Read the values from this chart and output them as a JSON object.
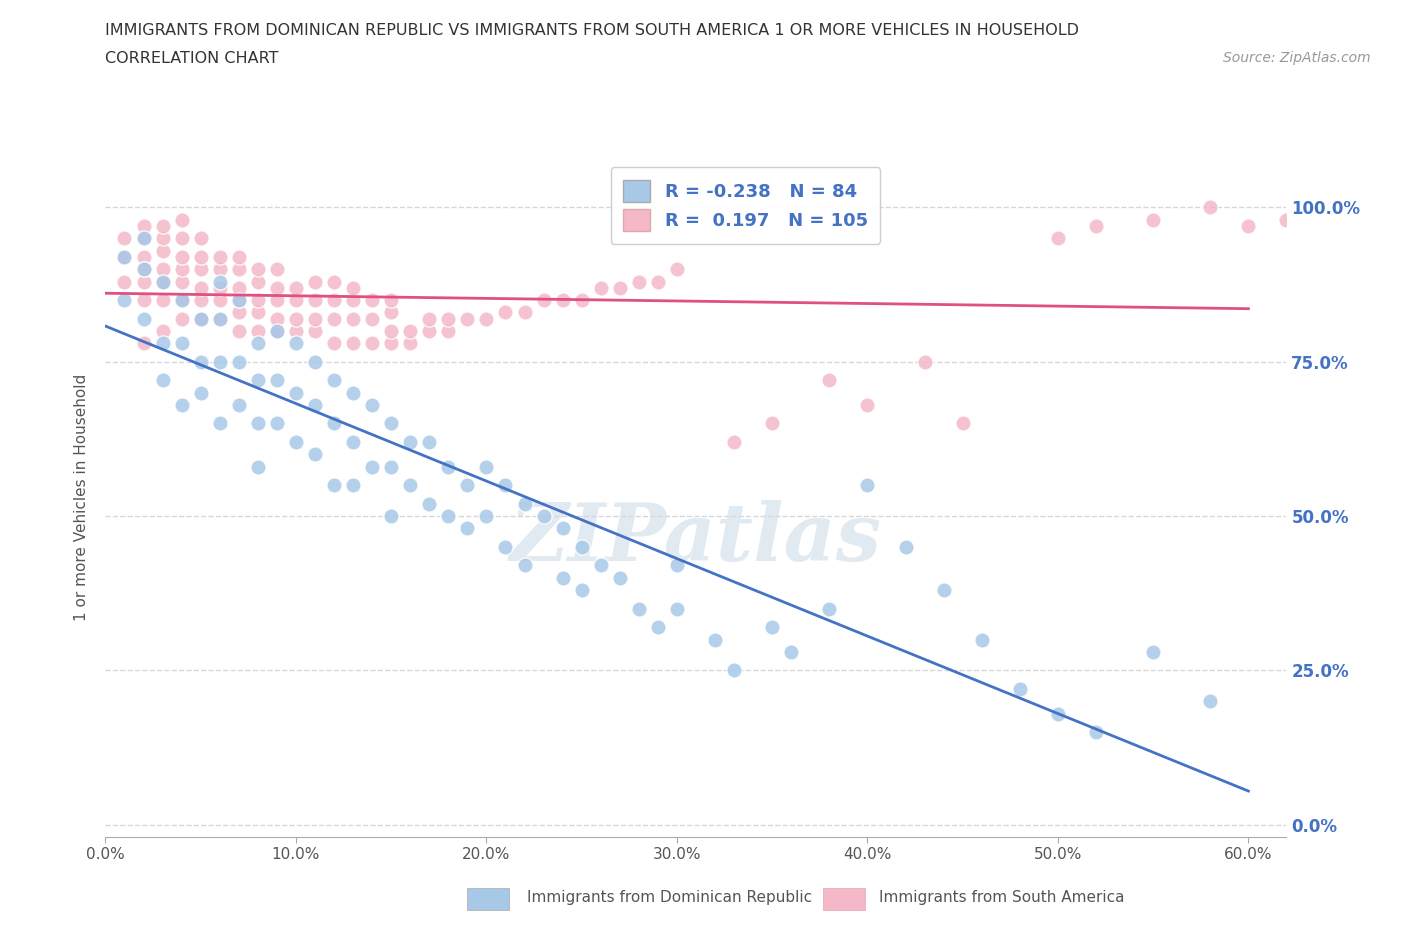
{
  "title_line1": "IMMIGRANTS FROM DOMINICAN REPUBLIC VS IMMIGRANTS FROM SOUTH AMERICA 1 OR MORE VEHICLES IN HOUSEHOLD",
  "title_line2": "CORRELATION CHART",
  "source_text": "Source: ZipAtlas.com",
  "ylabel": "1 or more Vehicles in Household",
  "xlim": [
    0.0,
    0.62
  ],
  "ylim": [
    -0.02,
    1.08
  ],
  "xtick_labels": [
    "0.0%",
    "10.0%",
    "20.0%",
    "30.0%",
    "40.0%",
    "50.0%",
    "60.0%"
  ],
  "xtick_vals": [
    0.0,
    0.1,
    0.2,
    0.3,
    0.4,
    0.5,
    0.6
  ],
  "ytick_labels": [
    "0.0%",
    "25.0%",
    "50.0%",
    "75.0%",
    "100.0%"
  ],
  "ytick_vals": [
    0.0,
    0.25,
    0.5,
    0.75,
    1.0
  ],
  "grid_color": "#cccccc",
  "grid_style": "--",
  "blue_color": "#a8c8e8",
  "pink_color": "#f4b8c8",
  "blue_line_color": "#4472C4",
  "pink_line_color": "#e05080",
  "R_blue": -0.238,
  "N_blue": 84,
  "R_pink": 0.197,
  "N_pink": 105,
  "legend_label_blue": "Immigrants from Dominican Republic",
  "legend_label_pink": "Immigrants from South America",
  "watermark": "ZIPatlas",
  "blue_scatter_x": [
    0.01,
    0.01,
    0.02,
    0.02,
    0.02,
    0.03,
    0.03,
    0.03,
    0.04,
    0.04,
    0.04,
    0.05,
    0.05,
    0.05,
    0.06,
    0.06,
    0.06,
    0.06,
    0.07,
    0.07,
    0.07,
    0.08,
    0.08,
    0.08,
    0.08,
    0.09,
    0.09,
    0.09,
    0.1,
    0.1,
    0.1,
    0.11,
    0.11,
    0.11,
    0.12,
    0.12,
    0.12,
    0.13,
    0.13,
    0.13,
    0.14,
    0.14,
    0.15,
    0.15,
    0.15,
    0.16,
    0.16,
    0.17,
    0.17,
    0.18,
    0.18,
    0.19,
    0.19,
    0.2,
    0.2,
    0.21,
    0.21,
    0.22,
    0.22,
    0.23,
    0.24,
    0.24,
    0.25,
    0.25,
    0.26,
    0.27,
    0.28,
    0.29,
    0.3,
    0.3,
    0.32,
    0.33,
    0.35,
    0.36,
    0.38,
    0.4,
    0.42,
    0.44,
    0.46,
    0.48,
    0.5,
    0.52,
    0.55,
    0.58
  ],
  "blue_scatter_y": [
    0.85,
    0.92,
    0.9,
    0.82,
    0.95,
    0.88,
    0.78,
    0.72,
    0.85,
    0.78,
    0.68,
    0.82,
    0.75,
    0.7,
    0.88,
    0.82,
    0.75,
    0.65,
    0.85,
    0.75,
    0.68,
    0.78,
    0.72,
    0.65,
    0.58,
    0.8,
    0.72,
    0.65,
    0.78,
    0.7,
    0.62,
    0.75,
    0.68,
    0.6,
    0.72,
    0.65,
    0.55,
    0.7,
    0.62,
    0.55,
    0.68,
    0.58,
    0.65,
    0.58,
    0.5,
    0.62,
    0.55,
    0.62,
    0.52,
    0.58,
    0.5,
    0.55,
    0.48,
    0.58,
    0.5,
    0.55,
    0.45,
    0.52,
    0.42,
    0.5,
    0.48,
    0.4,
    0.45,
    0.38,
    0.42,
    0.4,
    0.35,
    0.32,
    0.42,
    0.35,
    0.3,
    0.25,
    0.32,
    0.28,
    0.35,
    0.55,
    0.45,
    0.38,
    0.3,
    0.22,
    0.18,
    0.15,
    0.28,
    0.2
  ],
  "pink_scatter_x": [
    0.01,
    0.01,
    0.01,
    0.02,
    0.02,
    0.02,
    0.02,
    0.02,
    0.02,
    0.03,
    0.03,
    0.03,
    0.03,
    0.03,
    0.03,
    0.04,
    0.04,
    0.04,
    0.04,
    0.04,
    0.04,
    0.04,
    0.05,
    0.05,
    0.05,
    0.05,
    0.05,
    0.05,
    0.06,
    0.06,
    0.06,
    0.06,
    0.06,
    0.07,
    0.07,
    0.07,
    0.07,
    0.07,
    0.07,
    0.08,
    0.08,
    0.08,
    0.08,
    0.08,
    0.09,
    0.09,
    0.09,
    0.09,
    0.09,
    0.1,
    0.1,
    0.1,
    0.1,
    0.11,
    0.11,
    0.11,
    0.11,
    0.12,
    0.12,
    0.12,
    0.12,
    0.13,
    0.13,
    0.13,
    0.13,
    0.14,
    0.14,
    0.14,
    0.15,
    0.15,
    0.15,
    0.15,
    0.16,
    0.16,
    0.17,
    0.17,
    0.18,
    0.18,
    0.19,
    0.2,
    0.21,
    0.22,
    0.23,
    0.24,
    0.25,
    0.26,
    0.27,
    0.28,
    0.29,
    0.3,
    0.33,
    0.35,
    0.38,
    0.4,
    0.43,
    0.45,
    0.5,
    0.52,
    0.55,
    0.58,
    0.6,
    0.62,
    0.02,
    0.03,
    0.05
  ],
  "pink_scatter_y": [
    0.88,
    0.92,
    0.95,
    0.85,
    0.88,
    0.92,
    0.95,
    0.97,
    0.9,
    0.85,
    0.88,
    0.9,
    0.93,
    0.95,
    0.97,
    0.82,
    0.85,
    0.88,
    0.9,
    0.92,
    0.95,
    0.98,
    0.82,
    0.85,
    0.87,
    0.9,
    0.92,
    0.95,
    0.82,
    0.85,
    0.87,
    0.9,
    0.92,
    0.8,
    0.83,
    0.85,
    0.87,
    0.9,
    0.92,
    0.8,
    0.83,
    0.85,
    0.88,
    0.9,
    0.8,
    0.82,
    0.85,
    0.87,
    0.9,
    0.8,
    0.82,
    0.85,
    0.87,
    0.8,
    0.82,
    0.85,
    0.88,
    0.78,
    0.82,
    0.85,
    0.88,
    0.78,
    0.82,
    0.85,
    0.87,
    0.78,
    0.82,
    0.85,
    0.78,
    0.8,
    0.83,
    0.85,
    0.78,
    0.8,
    0.8,
    0.82,
    0.8,
    0.82,
    0.82,
    0.82,
    0.83,
    0.83,
    0.85,
    0.85,
    0.85,
    0.87,
    0.87,
    0.88,
    0.88,
    0.9,
    0.62,
    0.65,
    0.72,
    0.68,
    0.75,
    0.65,
    0.95,
    0.97,
    0.98,
    1.0,
    0.97,
    0.98,
    0.78,
    0.8,
    0.82
  ]
}
